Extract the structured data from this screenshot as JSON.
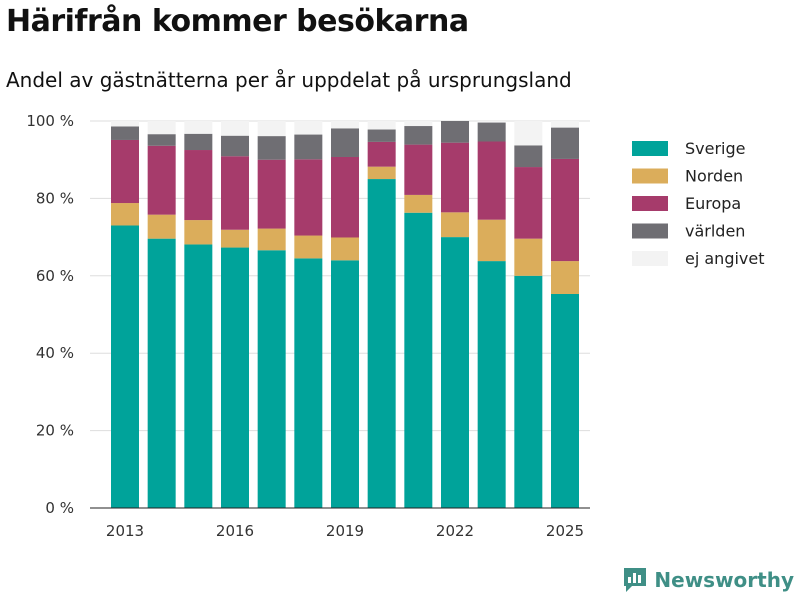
{
  "title": "Härifrån kommer besökarna",
  "subtitle": "Andel av gästnätterna per år uppdelat på ursprungsland",
  "brand": {
    "name": "Newsworthy",
    "icon": "bar-chart-speech-icon",
    "color": "#3f8f86"
  },
  "chart_data": {
    "type": "bar",
    "stacked": true,
    "x": [
      2013,
      2014,
      2015,
      2016,
      2017,
      2018,
      2019,
      2020,
      2021,
      2022,
      2023,
      2024,
      2025
    ],
    "x_tick_labels": [
      "2013",
      "2016",
      "2019",
      "2022",
      "2025"
    ],
    "y_tick_labels": [
      "0 %",
      "20 %",
      "40 %",
      "60 %",
      "80 %",
      "100 %"
    ],
    "ylim": [
      0,
      100
    ],
    "grid": true,
    "legend_position": "right",
    "series": [
      {
        "name": "Sverige",
        "color": "#00a39a",
        "values": [
          73,
          69.6,
          68.1,
          67.3,
          66.6,
          64.5,
          64,
          85,
          76.3,
          70,
          63.8,
          60,
          55.3
        ]
      },
      {
        "name": "Norden",
        "color": "#dbad5b",
        "values": [
          5.8,
          6.2,
          6.3,
          4.6,
          5.6,
          5.9,
          5.9,
          3.2,
          4.6,
          6.4,
          10.7,
          9.6,
          8.5
        ]
      },
      {
        "name": "Europa",
        "color": "#a63b6b",
        "values": [
          16.3,
          17.8,
          18.1,
          19,
          17.8,
          19.7,
          20.8,
          6.4,
          13,
          18,
          20.2,
          18.5,
          26.4
        ]
      },
      {
        "name": "världen",
        "color": "#6f6e73",
        "values": [
          3.5,
          3,
          4.2,
          5.3,
          6.1,
          6.4,
          7.4,
          3.2,
          4.8,
          5.6,
          4.9,
          5.6,
          8.1
        ]
      },
      {
        "name": "ej angivet",
        "color": "#f3f3f3",
        "values": [
          1.4,
          3.4,
          3.3,
          3.8,
          3.9,
          3.5,
          1.9,
          2.2,
          1.3,
          0,
          0.4,
          6.3,
          1.7
        ]
      }
    ]
  }
}
